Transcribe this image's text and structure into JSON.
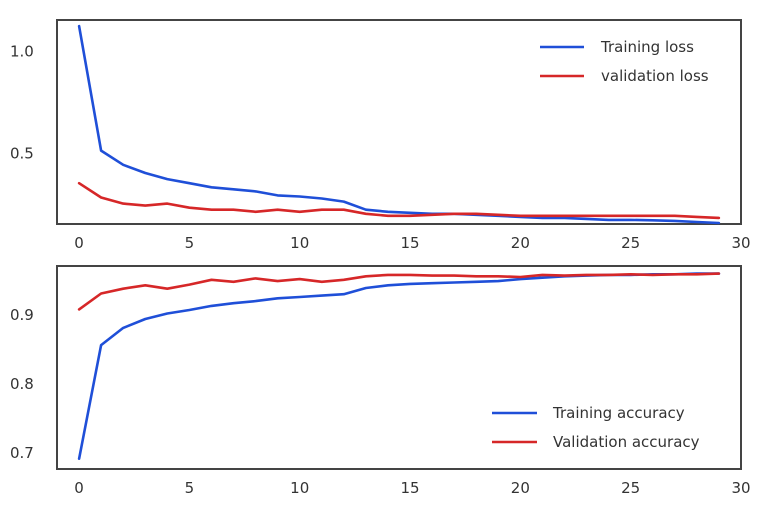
{
  "chart_data": [
    {
      "type": "line",
      "x": [
        0,
        1,
        2,
        3,
        4,
        5,
        6,
        7,
        8,
        9,
        10,
        11,
        12,
        13,
        14,
        15,
        16,
        17,
        18,
        19,
        20,
        21,
        22,
        23,
        24,
        25,
        26,
        27,
        28,
        29
      ],
      "xlim": [
        -1,
        30
      ],
      "ylim": [
        0.15,
        1.15
      ],
      "xticks": [
        0,
        5,
        10,
        15,
        20,
        25,
        30
      ],
      "yticks": [
        0.5,
        1.0
      ],
      "ytick_labels": [
        "0.5",
        "1.0"
      ],
      "legend_position": "top-right",
      "grid": false,
      "series": [
        {
          "name": "Training loss",
          "color": "#1f4fd8",
          "values": [
            1.12,
            0.51,
            0.44,
            0.4,
            0.37,
            0.35,
            0.33,
            0.32,
            0.31,
            0.29,
            0.285,
            0.275,
            0.26,
            0.22,
            0.21,
            0.205,
            0.2,
            0.2,
            0.195,
            0.19,
            0.185,
            0.18,
            0.18,
            0.175,
            0.17,
            0.17,
            0.168,
            0.165,
            0.16,
            0.155
          ]
        },
        {
          "name": "validation loss",
          "color": "#d62728",
          "values": [
            0.35,
            0.28,
            0.25,
            0.24,
            0.25,
            0.23,
            0.22,
            0.22,
            0.21,
            0.22,
            0.21,
            0.22,
            0.22,
            0.2,
            0.19,
            0.19,
            0.195,
            0.2,
            0.2,
            0.195,
            0.19,
            0.19,
            0.19,
            0.19,
            0.19,
            0.19,
            0.19,
            0.19,
            0.185,
            0.18
          ]
        }
      ]
    },
    {
      "type": "line",
      "x": [
        0,
        1,
        2,
        3,
        4,
        5,
        6,
        7,
        8,
        9,
        10,
        11,
        12,
        13,
        14,
        15,
        16,
        17,
        18,
        19,
        20,
        21,
        22,
        23,
        24,
        25,
        26,
        27,
        28,
        29
      ],
      "xlim": [
        -1,
        30
      ],
      "ylim": [
        0.675,
        0.97
      ],
      "xticks": [
        0,
        5,
        10,
        15,
        20,
        25,
        30
      ],
      "yticks": [
        0.7,
        0.8,
        0.9
      ],
      "ytick_labels": [
        "0.7",
        "0.8",
        "0.9"
      ],
      "legend_position": "lower-right",
      "grid": false,
      "series": [
        {
          "name": "Training accuracy",
          "color": "#1f4fd8",
          "values": [
            0.69,
            0.855,
            0.88,
            0.893,
            0.901,
            0.906,
            0.912,
            0.916,
            0.919,
            0.923,
            0.925,
            0.927,
            0.929,
            0.938,
            0.942,
            0.944,
            0.945,
            0.946,
            0.947,
            0.948,
            0.951,
            0.953,
            0.955,
            0.956,
            0.957,
            0.957,
            0.958,
            0.958,
            0.959,
            0.959
          ]
        },
        {
          "name": "Validation accuracy",
          "color": "#d62728",
          "values": [
            0.907,
            0.93,
            0.937,
            0.942,
            0.937,
            0.943,
            0.95,
            0.947,
            0.952,
            0.948,
            0.951,
            0.947,
            0.95,
            0.955,
            0.957,
            0.957,
            0.956,
            0.956,
            0.955,
            0.955,
            0.954,
            0.957,
            0.956,
            0.957,
            0.957,
            0.958,
            0.957,
            0.958,
            0.958,
            0.959
          ]
        }
      ]
    }
  ]
}
